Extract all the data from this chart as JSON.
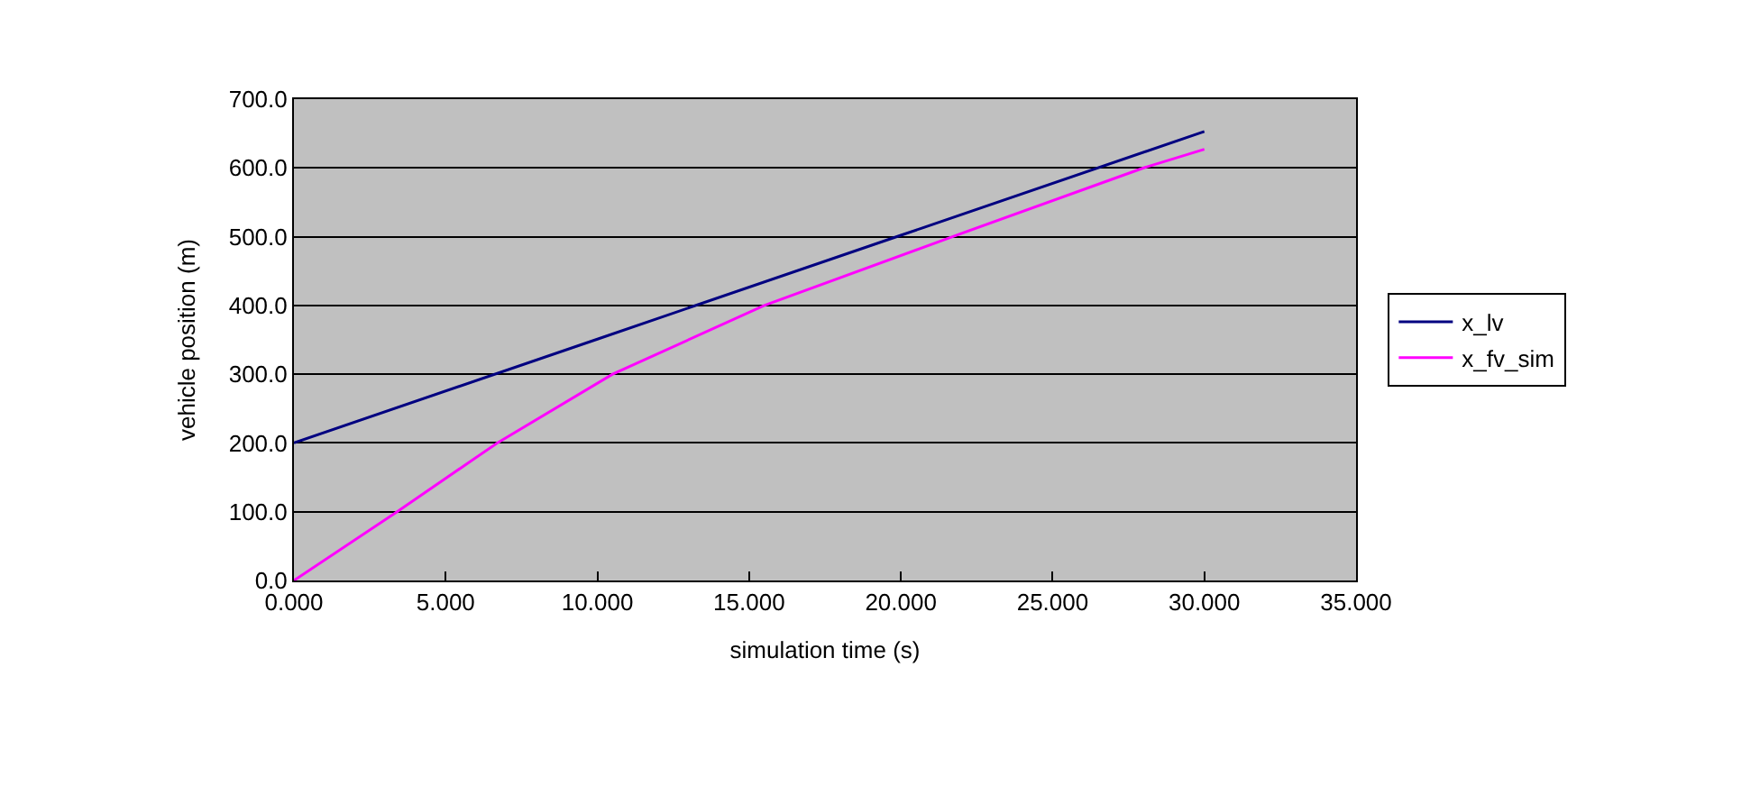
{
  "chart_data": {
    "type": "line",
    "xlabel": "simulation time (s)",
    "ylabel": "vehicle position (m)",
    "series": [
      {
        "name": "x_lv",
        "color": "#000080",
        "x": [
          0,
          10,
          20,
          30
        ],
        "values": [
          200,
          351,
          502,
          653
        ]
      },
      {
        "name": "x_fv_sim",
        "color": "#ff00ff",
        "x": [
          0,
          3.4,
          6.7,
          10.5,
          15.5,
          21.7,
          28.0,
          30
        ],
        "values": [
          0,
          100,
          200,
          300,
          400,
          500,
          600,
          627
        ]
      }
    ],
    "xlim": [
      0,
      35
    ],
    "ylim": [
      0,
      700
    ],
    "xticks": [
      {
        "value": 0,
        "label": "0.000"
      },
      {
        "value": 5,
        "label": "5.000"
      },
      {
        "value": 10,
        "label": "10.000"
      },
      {
        "value": 15,
        "label": "15.000"
      },
      {
        "value": 20,
        "label": "20.000"
      },
      {
        "value": 25,
        "label": "25.000"
      },
      {
        "value": 30,
        "label": "30.000"
      },
      {
        "value": 35,
        "label": "35.000"
      }
    ],
    "yticks": [
      {
        "value": 0,
        "label": "0.0"
      },
      {
        "value": 100,
        "label": "100.0"
      },
      {
        "value": 200,
        "label": "200.0"
      },
      {
        "value": 300,
        "label": "300.0"
      },
      {
        "value": 400,
        "label": "400.0"
      },
      {
        "value": 500,
        "label": "500.0"
      },
      {
        "value": 600,
        "label": "600.0"
      },
      {
        "value": 700,
        "label": "700.0"
      }
    ],
    "grid": "y",
    "legend": "right",
    "marker": "none",
    "line_style": "solid"
  }
}
